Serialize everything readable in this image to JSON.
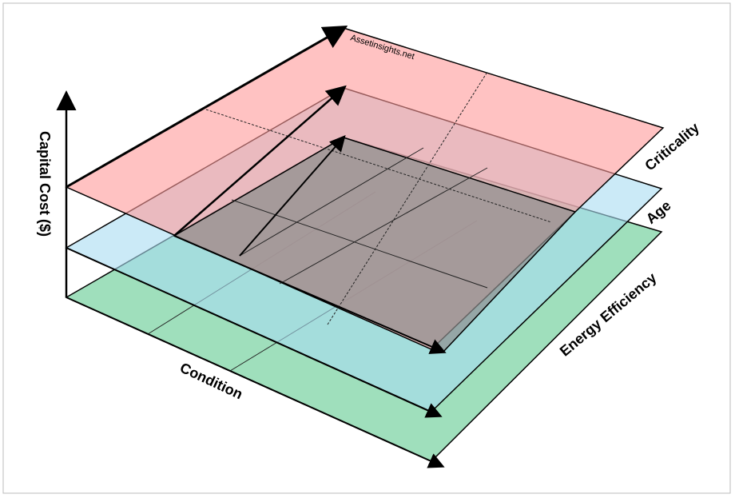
{
  "watermark": "Assetinsights.net",
  "axes": {
    "vertical": "Capital Cost ($)",
    "front": "Condition"
  },
  "layers": [
    {
      "label": "Criticality"
    },
    {
      "label": "Age"
    },
    {
      "label": "Energy Efficiency"
    }
  ]
}
